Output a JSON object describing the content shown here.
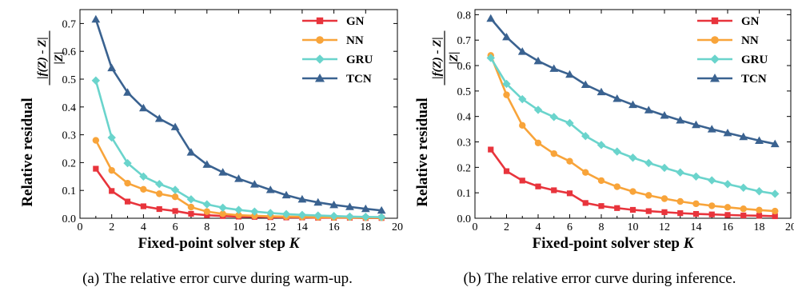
{
  "chart_data": [
    {
      "type": "line",
      "xlabel": "Fixed-point solver step",
      "xlabel_var": "K",
      "ylabel": "Relative residual",
      "ylabel_fraction": {
        "numerator": "|f(Z) - Z|",
        "denominator": "|Z|"
      },
      "xlim": [
        0,
        20
      ],
      "ylim": [
        0,
        0.75
      ],
      "xticks": [
        "0",
        "2",
        "4",
        "6",
        "8",
        "10",
        "12",
        "14",
        "16",
        "18",
        "20"
      ],
      "yticks": [
        "0.0",
        "0.1",
        "0.2",
        "0.3",
        "0.4",
        "0.5",
        "0.6",
        "0.7"
      ],
      "legend_position": "top-right",
      "caption": "(a) The relative error curve during warm-up.",
      "x": [
        1,
        2,
        3,
        4,
        5,
        6,
        7,
        8,
        9,
        10,
        11,
        12,
        13,
        14,
        15,
        16,
        17,
        18,
        19
      ],
      "series": [
        {
          "name": "GN",
          "color": "#e8343c",
          "marker": "square",
          "values": [
            0.178,
            0.098,
            0.06,
            0.043,
            0.033,
            0.026,
            0.016,
            0.011,
            0.008,
            0.006,
            0.005,
            0.004,
            0.003,
            0.003,
            0.002,
            0.002,
            0.002,
            0.001,
            0.001
          ]
        },
        {
          "name": "NN",
          "color": "#f8a43a",
          "marker": "circle",
          "values": [
            0.28,
            0.172,
            0.126,
            0.104,
            0.088,
            0.077,
            0.04,
            0.024,
            0.016,
            0.011,
            0.009,
            0.007,
            0.006,
            0.005,
            0.004,
            0.003,
            0.003,
            0.002,
            0.002
          ]
        },
        {
          "name": "GRU",
          "color": "#6ad4cc",
          "marker": "diamond",
          "values": [
            0.495,
            0.29,
            0.198,
            0.15,
            0.123,
            0.102,
            0.068,
            0.05,
            0.038,
            0.03,
            0.024,
            0.019,
            0.015,
            0.012,
            0.01,
            0.008,
            0.006,
            0.005,
            0.004
          ]
        },
        {
          "name": "TCN",
          "color": "#3a6290",
          "marker": "triangle",
          "values": [
            0.715,
            0.54,
            0.452,
            0.396,
            0.358,
            0.328,
            0.237,
            0.193,
            0.165,
            0.142,
            0.122,
            0.102,
            0.083,
            0.068,
            0.057,
            0.048,
            0.041,
            0.034,
            0.028
          ]
        }
      ]
    },
    {
      "type": "line",
      "xlabel": "Fixed-point solver step",
      "xlabel_var": "K",
      "ylabel": "Relative residual",
      "ylabel_fraction": {
        "numerator": "|f(Z) - Z|",
        "denominator": "|Z|"
      },
      "xlim": [
        0,
        20
      ],
      "ylim": [
        0,
        0.82
      ],
      "xticks": [
        "0",
        "2",
        "4",
        "6",
        "8",
        "10",
        "12",
        "14",
        "16",
        "18",
        "20"
      ],
      "yticks": [
        "0.0",
        "0.1",
        "0.2",
        "0.3",
        "0.4",
        "0.5",
        "0.6",
        "0.7",
        "0.8"
      ],
      "legend_position": "top-right",
      "caption": "(b) The relative error curve during inference.",
      "x": [
        1,
        2,
        3,
        4,
        5,
        6,
        7,
        8,
        9,
        10,
        11,
        12,
        13,
        14,
        15,
        16,
        17,
        18,
        19
      ],
      "series": [
        {
          "name": "GN",
          "color": "#e8343c",
          "marker": "square",
          "values": [
            0.27,
            0.185,
            0.148,
            0.125,
            0.11,
            0.098,
            0.06,
            0.048,
            0.04,
            0.033,
            0.028,
            0.024,
            0.02,
            0.017,
            0.015,
            0.013,
            0.011,
            0.01,
            0.008
          ]
        },
        {
          "name": "NN",
          "color": "#f8a43a",
          "marker": "circle",
          "values": [
            0.64,
            0.485,
            0.365,
            0.296,
            0.254,
            0.224,
            0.18,
            0.148,
            0.124,
            0.105,
            0.09,
            0.077,
            0.066,
            0.057,
            0.049,
            0.043,
            0.037,
            0.032,
            0.028
          ]
        },
        {
          "name": "GRU",
          "color": "#6ad4cc",
          "marker": "diamond",
          "values": [
            0.63,
            0.528,
            0.468,
            0.426,
            0.398,
            0.374,
            0.323,
            0.288,
            0.262,
            0.238,
            0.217,
            0.198,
            0.18,
            0.164,
            0.149,
            0.134,
            0.12,
            0.106,
            0.096
          ]
        },
        {
          "name": "TCN",
          "color": "#3a6290",
          "marker": "triangle",
          "values": [
            0.785,
            0.712,
            0.655,
            0.618,
            0.588,
            0.565,
            0.525,
            0.496,
            0.47,
            0.446,
            0.425,
            0.404,
            0.385,
            0.367,
            0.35,
            0.335,
            0.32,
            0.305,
            0.292
          ]
        }
      ]
    }
  ]
}
